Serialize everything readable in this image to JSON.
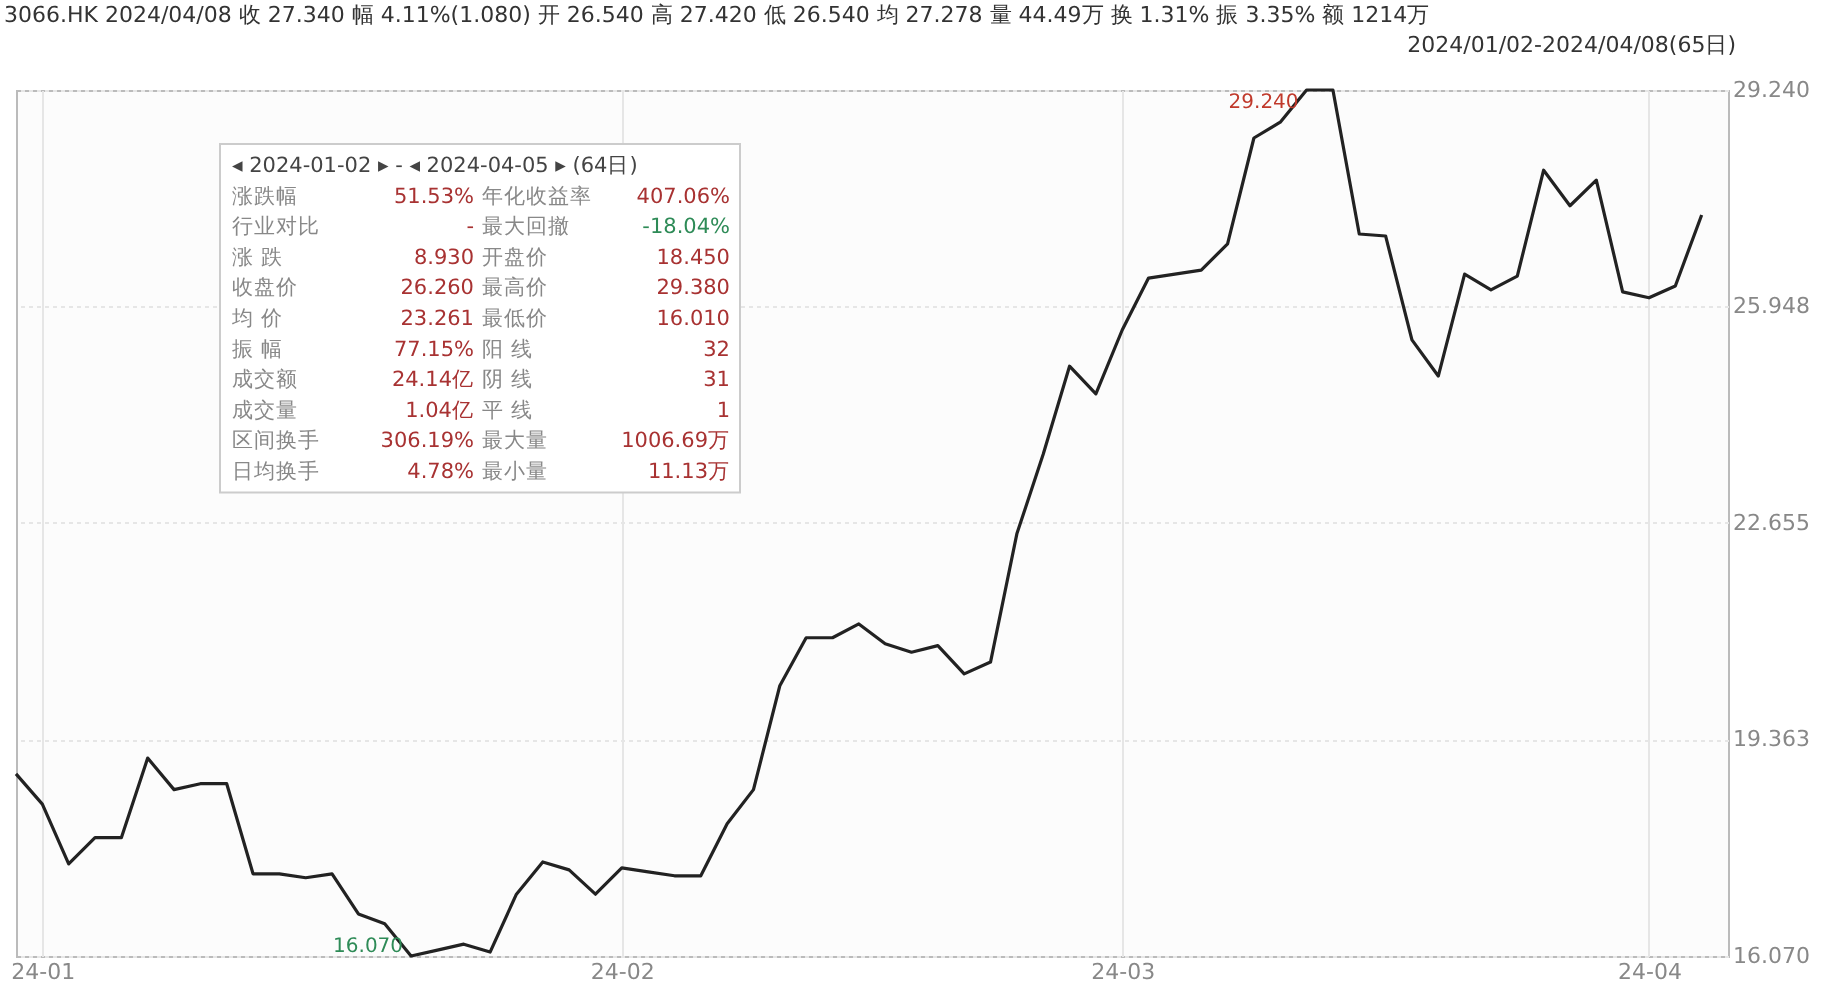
{
  "chart_data": {
    "type": "line",
    "title": "3066.HK    2024/04/08   收 27.340   幅 4.11%(1.080)   开 26.540   高 27.420   低 26.540   均 27.278   量 44.49万   换 1.31%   振 3.35%   额 1214万",
    "subtitle": "2024/01/02-2024/04/08(65日)",
    "categories": [
      null,
      "24-01",
      null,
      null,
      null,
      null,
      null,
      null,
      null,
      null,
      null,
      null,
      null,
      null,
      null,
      null,
      null,
      null,
      null,
      null,
      null,
      null,
      null,
      "24-02",
      null,
      null,
      null,
      null,
      null,
      null,
      null,
      null,
      null,
      null,
      null,
      null,
      null,
      null,
      null,
      null,
      null,
      null,
      "24-03",
      null,
      null,
      null,
      null,
      null,
      null,
      null,
      null,
      null,
      null,
      null,
      null,
      null,
      null,
      null,
      null,
      null,
      null,
      null,
      "24-04",
      null,
      null
    ],
    "series": [
      {
        "color": "#222222",
        "values": [
          18.84,
          18.38,
          17.47,
          17.87,
          17.87,
          19.08,
          18.6,
          18.69,
          18.69,
          17.32,
          17.32,
          17.26,
          17.32,
          16.71,
          16.56,
          16.07,
          16.16,
          16.25,
          16.13,
          17.01,
          17.5,
          17.38,
          17.01,
          17.41,
          17.35,
          17.29,
          17.29,
          18.08,
          18.6,
          20.18,
          20.91,
          20.91,
          21.12,
          20.82,
          20.69,
          20.79,
          20.36,
          20.54,
          22.49,
          23.7,
          25.04,
          24.62,
          25.59,
          26.38,
          26.44,
          26.5,
          26.9,
          28.51,
          28.75,
          29.24,
          29.24,
          27.05,
          27.02,
          25.44,
          24.89,
          26.44,
          26.2,
          26.41,
          28.02,
          27.48,
          27.87,
          26.17,
          26.08,
          26.26,
          27.34
        ]
      }
    ],
    "ylim": [
      16.07,
      29.24
    ],
    "yticks": [
      {
        "value": 16.07,
        "label": "16.070"
      },
      19.363,
      22.655,
      25.948,
      {
        "value": 29.24,
        "label": "29.240"
      }
    ],
    "grid": true,
    "annotations": [
      "29.240",
      "16.070",
      "◂ 2024-01-02 ▸ - ◂ 2024-04-05 ▸ (64日)",
      "涨跌幅",
      "51.53%",
      "年化收益率",
      "407.06%",
      "行业对比",
      "-",
      "最大回撤",
      "-18.04%",
      "涨 跌",
      "8.930",
      "开盘价",
      "18.450",
      "收盘价",
      "26.260",
      "最高价",
      "29.380",
      "均 价",
      "23.261",
      "最低价",
      "16.010",
      "振 幅",
      "77.15%",
      "阳 线",
      "32",
      "成交额",
      "24.14亿",
      "阴 线",
      "31",
      "成交量",
      "1.04亿",
      "平 线",
      "1",
      "区间换手",
      "306.19%",
      "最大量",
      "1006.69万",
      "日均换手",
      "4.78%",
      "最小量",
      "11.13万"
    ]
  }
}
